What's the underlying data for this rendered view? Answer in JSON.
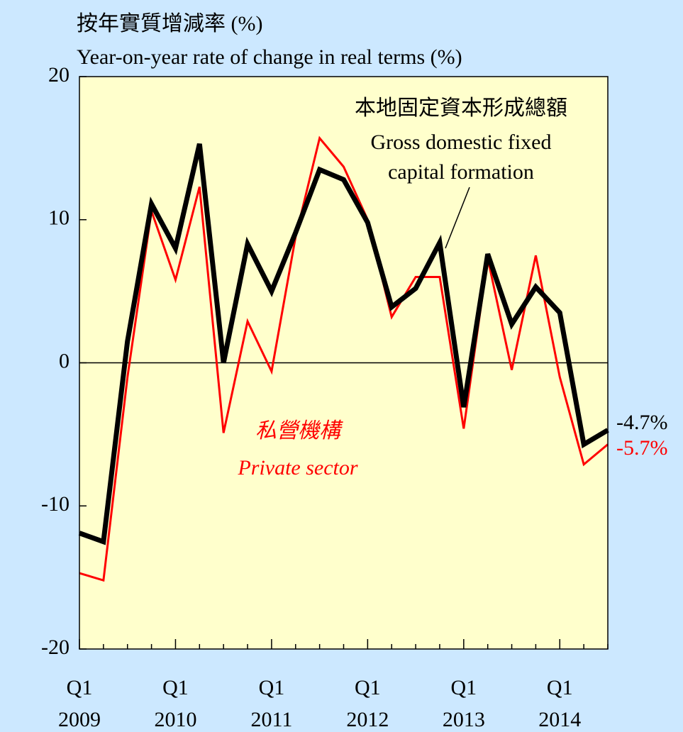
{
  "chart_data": {
    "type": "line",
    "title": "按年實質增減率 (%)",
    "subtitle": "Year-on-year rate of change in real terms (%)",
    "categories": [
      "Q1 2009",
      null,
      null,
      null,
      "Q1 2010",
      null,
      null,
      null,
      "Q1 2011",
      null,
      null,
      null,
      "Q1 2012",
      null,
      null,
      null,
      "Q1 2013",
      null,
      null,
      null,
      "Q1 2014",
      null,
      null
    ],
    "series": [
      {
        "name": "本地固定資本形成總額",
        "name_en": "Gross domestic fixed capital formation",
        "color": "#000000",
        "values": [
          -11.9,
          -12.5,
          1.5,
          11.1,
          8.0,
          15.3,
          0.0,
          8.3,
          5.0,
          9.1,
          13.5,
          12.8,
          9.8,
          3.9,
          5.2,
          8.4,
          -3.1,
          7.6,
          2.7,
          5.3,
          3.5,
          -5.7,
          -4.7
        ],
        "value_labels": [
          null,
          null,
          null,
          null,
          null,
          null,
          null,
          null,
          null,
          null,
          null,
          null,
          null,
          null,
          null,
          null,
          null,
          null,
          null,
          null,
          null,
          null,
          "-4.7%"
        ]
      },
      {
        "name": "私營機構",
        "name_en": "Private sector",
        "color": "#ff0000",
        "values": [
          -14.7,
          -15.2,
          -1.0,
          10.6,
          5.8,
          12.3,
          -4.9,
          2.9,
          -0.6,
          8.8,
          15.7,
          13.7,
          10.0,
          3.2,
          6.0,
          6.0,
          -4.6,
          7.3,
          -0.5,
          7.5,
          -1.0,
          -7.1,
          -5.7
        ],
        "value_labels": [
          null,
          null,
          null,
          null,
          null,
          null,
          null,
          null,
          null,
          null,
          null,
          null,
          null,
          null,
          null,
          null,
          null,
          null,
          null,
          null,
          null,
          null,
          "-5.7%"
        ]
      }
    ],
    "ylim": [
      -20,
      20
    ],
    "yticks": [
      -20,
      -10,
      0,
      10,
      20
    ],
    "background": "#ffffcc"
  }
}
